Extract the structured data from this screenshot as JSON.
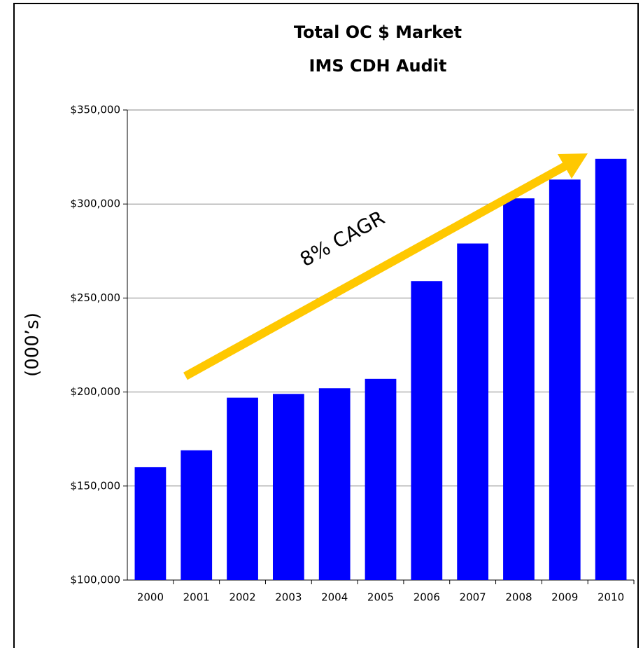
{
  "chart_data": {
    "type": "bar",
    "title": [
      "Total OC $ Market",
      "IMS CDH Audit"
    ],
    "ylabel": "(000’s)",
    "annotation": "8% CAGR",
    "categories": [
      "2000",
      "2001",
      "2002",
      "2003",
      "2004",
      "2005",
      "2006",
      "2007",
      "2008",
      "2009",
      "2010"
    ],
    "values": [
      160000,
      169000,
      197000,
      199000,
      202000,
      207000,
      259000,
      279000,
      303000,
      313000,
      324000
    ],
    "color": "#0000ff",
    "ylim": [
      100000,
      350000
    ],
    "yticks": [
      {
        "value": 100000,
        "label": "$100,000"
      },
      {
        "value": 150000,
        "label": "$150,000"
      },
      {
        "value": 200000,
        "label": "$200,000"
      },
      {
        "value": 250000,
        "label": "$250,000"
      },
      {
        "value": 300000,
        "label": "$300,000"
      },
      {
        "value": 350000,
        "label": "$350,000"
      }
    ],
    "grid": true
  }
}
